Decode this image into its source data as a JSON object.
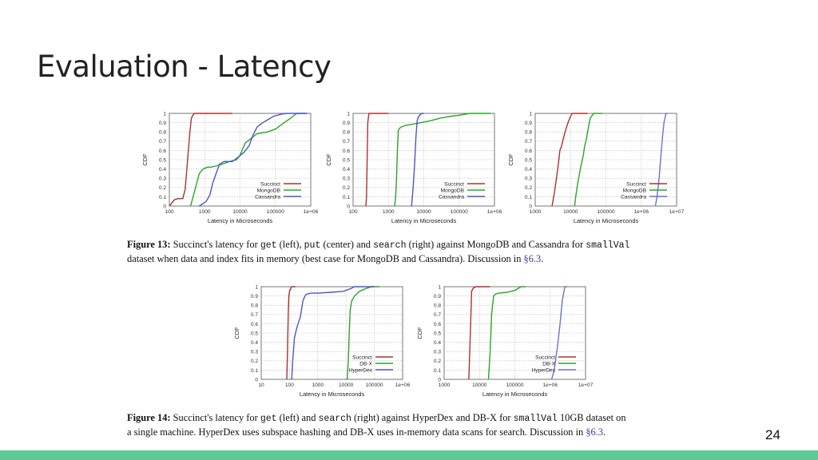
{
  "slide": {
    "title": "Evaluation - Latency",
    "page_number": "24",
    "accent_color": "#5ec995"
  },
  "figure13": {
    "label": "Figure 13:",
    "t1": "Succinct's latency for ",
    "c1": "get",
    "t2": " (left), ",
    "c2": "put",
    "t3": " (center) and ",
    "c3": "search",
    "t4": " (right) against MongoDB and Cassandra for ",
    "c4": "smallVal",
    "line2": "dataset when data and index fits in memory (best case for MongoDB and Cassandra). Discussion in ",
    "ref": "§6.3",
    "end": "."
  },
  "figure14": {
    "label": "Figure 14:",
    "t1": "Succinct's latency for ",
    "c1": "get",
    "t2": " (left) and ",
    "c2": "search",
    "t3": " (right) against HyperDex and DB-X for ",
    "c3": "smallVal",
    "t4": " 10GB dataset on",
    "line2": "a single machine. HyperDex uses subspace hashing and DB-X uses in-memory data scans for search. Discussion in ",
    "ref": "§6.3",
    "end": "."
  },
  "chart_data": [
    {
      "type": "line",
      "id": "fig13-get",
      "ylabel": "CDF",
      "xlabel": "Latency in Microseconds",
      "xscale": "log",
      "xlim": [
        100,
        1000000
      ],
      "ylim": [
        0,
        1
      ],
      "xticks": [
        "100",
        "1000",
        "10000",
        "100000",
        "1e+06"
      ],
      "yticks": [
        "0",
        "0.1",
        "0.2",
        "0.3",
        "0.4",
        "0.5",
        "0.6",
        "0.7",
        "0.8",
        "0.9",
        "1"
      ],
      "legend": "bottom-right",
      "series": [
        {
          "name": "Succinct",
          "color": "#b03030",
          "x": [
            100,
            140,
            180,
            240,
            280,
            320,
            380,
            420,
            500,
            800,
            6000
          ],
          "y": [
            0,
            0.07,
            0.08,
            0.08,
            0.18,
            0.45,
            0.8,
            0.95,
            1.0,
            1.0,
            1.0
          ]
        },
        {
          "name": "MongoDB",
          "color": "#2aa52a",
          "x": [
            400,
            600,
            700,
            900,
            1200,
            1500,
            2500,
            5000,
            8000,
            10000,
            14000,
            30000,
            60000,
            100000,
            150000,
            250000,
            400000,
            700000
          ],
          "y": [
            0,
            0.25,
            0.35,
            0.4,
            0.42,
            0.42,
            0.44,
            0.48,
            0.5,
            0.55,
            0.68,
            0.78,
            0.8,
            0.83,
            0.88,
            0.94,
            1.0,
            1.0
          ]
        },
        {
          "name": "Cassandra",
          "color": "#4a56c8",
          "x": [
            700,
            1100,
            1400,
            1700,
            2100,
            2600,
            3500,
            6000,
            9000,
            13000,
            18000,
            23000,
            30000,
            40000,
            60000,
            90000,
            140000,
            200000,
            300000,
            500000,
            800000
          ],
          "y": [
            0,
            0.05,
            0.12,
            0.25,
            0.35,
            0.45,
            0.48,
            0.48,
            0.53,
            0.58,
            0.65,
            0.76,
            0.85,
            0.89,
            0.93,
            0.97,
            0.99,
            1.0,
            1.0,
            1.0,
            1.0
          ]
        }
      ]
    },
    {
      "type": "line",
      "id": "fig13-put",
      "ylabel": "CDF",
      "xlabel": "Latency in Microseconds",
      "xscale": "log",
      "xlim": [
        100,
        1000000
      ],
      "ylim": [
        0,
        1
      ],
      "xticks": [
        "100",
        "1000",
        "10000",
        "100000",
        "1e+06"
      ],
      "yticks": [
        "0",
        "0.1",
        "0.2",
        "0.3",
        "0.4",
        "0.5",
        "0.6",
        "0.7",
        "0.8",
        "0.9",
        "1"
      ],
      "legend": "bottom-right",
      "series": [
        {
          "name": "Succinct",
          "color": "#b03030",
          "x": [
            230,
            240,
            250,
            260,
            280,
            300,
            1000
          ],
          "y": [
            0,
            0.1,
            0.5,
            0.9,
            1.0,
            1.0,
            1.0
          ]
        },
        {
          "name": "MongoDB",
          "color": "#2aa52a",
          "x": [
            1500,
            1600,
            1700,
            1800,
            1900,
            2200,
            3000,
            6000,
            15000,
            30000,
            60000,
            100000,
            200000,
            400000,
            800000
          ],
          "y": [
            0,
            0.1,
            0.3,
            0.6,
            0.82,
            0.85,
            0.87,
            0.89,
            0.92,
            0.95,
            0.97,
            0.98,
            1.0,
            1.0,
            1.0
          ]
        },
        {
          "name": "Cassandra",
          "color": "#4a56c8",
          "x": [
            4500,
            5000,
            5500,
            6000,
            6500,
            7000,
            8000,
            9000,
            10000
          ],
          "y": [
            0,
            0.2,
            0.45,
            0.75,
            0.92,
            0.96,
            0.99,
            1.0,
            1.0
          ]
        }
      ]
    },
    {
      "type": "line",
      "id": "fig13-search",
      "ylabel": "CDF",
      "xlabel": "Latency in Microseconds",
      "xscale": "log",
      "xlim": [
        1000,
        10000000
      ],
      "ylim": [
        0,
        1
      ],
      "xticks": [
        "1000",
        "10000",
        "100000",
        "1e+06",
        "1e+07"
      ],
      "yticks": [
        "0",
        "0.1",
        "0.2",
        "0.3",
        "0.4",
        "0.5",
        "0.6",
        "0.7",
        "0.8",
        "0.9",
        "1"
      ],
      "legend": "bottom-right",
      "series": [
        {
          "name": "Succinct",
          "color": "#b03030",
          "x": [
            3000,
            3500,
            4000,
            4500,
            5000,
            5600,
            6000,
            7000,
            7800,
            8500,
            9500,
            11000,
            14000,
            30000
          ],
          "y": [
            0,
            0.15,
            0.3,
            0.45,
            0.6,
            0.65,
            0.7,
            0.8,
            0.86,
            0.9,
            0.95,
            1.0,
            1.0,
            1.0
          ]
        },
        {
          "name": "MongoDB",
          "color": "#2aa52a",
          "x": [
            13000,
            14000,
            16000,
            18000,
            20000,
            23000,
            25000,
            28000,
            32000,
            36000,
            45000,
            60000,
            80000
          ],
          "y": [
            0,
            0.1,
            0.25,
            0.35,
            0.45,
            0.55,
            0.65,
            0.72,
            0.85,
            0.95,
            1.0,
            1.0,
            1.0
          ]
        },
        {
          "name": "Cassandra",
          "color": "#6a72d0",
          "x": [
            2500000,
            2800000,
            3200000,
            3600000,
            4000000,
            4400000,
            5000000,
            5500000
          ],
          "y": [
            0,
            0.1,
            0.3,
            0.55,
            0.75,
            0.9,
            1.0,
            1.0
          ]
        }
      ]
    },
    {
      "type": "line",
      "id": "fig14-get",
      "ylabel": "CDF",
      "xlabel": "Latency in Microseconds",
      "xscale": "log",
      "xlim": [
        10,
        1000000
      ],
      "ylim": [
        0,
        1
      ],
      "xticks": [
        "10",
        "100",
        "1000",
        "10000",
        "100000",
        "1e+06"
      ],
      "yticks": [
        "0",
        "0.1",
        "0.2",
        "0.3",
        "0.4",
        "0.5",
        "0.6",
        "0.7",
        "0.8",
        "0.9",
        "1"
      ],
      "legend": "bottom-right",
      "series": [
        {
          "name": "Succinct",
          "color": "#b03030",
          "x": [
            80,
            85,
            90,
            95,
            100,
            110,
            120,
            160
          ],
          "y": [
            0,
            0.3,
            0.7,
            0.9,
            0.95,
            0.98,
            1.0,
            1.0
          ]
        },
        {
          "name": "DB-X",
          "color": "#2aa52a",
          "x": [
            11000,
            12000,
            13000,
            14000,
            16000,
            20000,
            30000,
            50000,
            80000,
            150000
          ],
          "y": [
            0,
            0.2,
            0.5,
            0.75,
            0.85,
            0.9,
            0.95,
            0.98,
            1.0,
            1.0
          ]
        },
        {
          "name": "HyperDex",
          "color": "#4a56c8",
          "x": [
            120,
            130,
            150,
            180,
            200,
            240,
            300,
            350,
            400,
            600,
            1000,
            3000,
            8000,
            12000,
            15000,
            20000,
            40000,
            100000
          ],
          "y": [
            0,
            0.2,
            0.45,
            0.55,
            0.6,
            0.67,
            0.85,
            0.9,
            0.92,
            0.93,
            0.93,
            0.94,
            0.95,
            0.97,
            0.98,
            1.0,
            1.0,
            1.0
          ]
        }
      ]
    },
    {
      "type": "line",
      "id": "fig14-search",
      "ylabel": "CDF",
      "xlabel": "Latency in Microseconds",
      "xscale": "log",
      "xlim": [
        1000,
        10000000
      ],
      "ylim": [
        0,
        1
      ],
      "xticks": [
        "1000",
        "10000",
        "100000",
        "1e+06",
        "1e+07"
      ],
      "yticks": [
        "0",
        "0.1",
        "0.2",
        "0.3",
        "0.4",
        "0.5",
        "0.6",
        "0.7",
        "0.8",
        "0.9",
        "1"
      ],
      "legend": "bottom-right",
      "series": [
        {
          "name": "Succinct",
          "color": "#b03030",
          "x": [
            5000,
            5500,
            6000,
            6500,
            7000,
            8000,
            10000,
            20000
          ],
          "y": [
            0,
            0.5,
            0.95,
            0.98,
            0.99,
            1.0,
            1.0,
            1.0
          ]
        },
        {
          "name": "DB-X",
          "color": "#2aa52a",
          "x": [
            18000,
            20000,
            22000,
            25000,
            28000,
            35000,
            60000,
            100000,
            150000,
            200000
          ],
          "y": [
            0,
            0.3,
            0.7,
            0.9,
            0.92,
            0.93,
            0.94,
            0.96,
            1.0,
            1.0
          ]
        },
        {
          "name": "HyperDex",
          "color": "#6a72d0",
          "x": [
            1100000,
            1300000,
            1600000,
            1900000,
            2200000,
            2600000,
            3000000
          ],
          "y": [
            0,
            0.1,
            0.35,
            0.6,
            0.85,
            1.0,
            1.0
          ]
        }
      ]
    }
  ]
}
